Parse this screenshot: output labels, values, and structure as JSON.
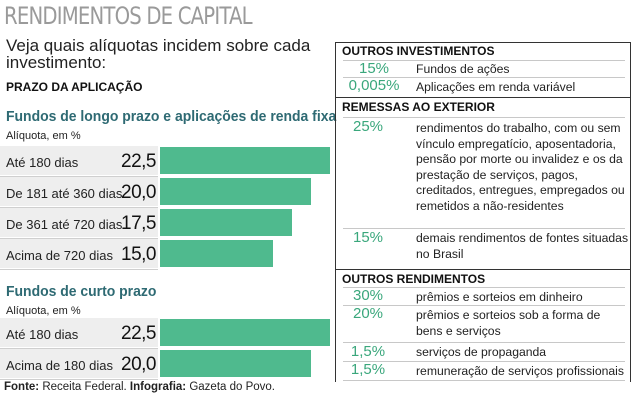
{
  "title": "RENDIMENTOS DE CAPITAL",
  "subtitle": "Veja quais alíquotas incidem sobre cada investimento:",
  "section_label": "PRAZO DA APLICAÇÃO",
  "colors": {
    "bar": "#4fba8e",
    "heading": "#2e6a73",
    "percent": "#3aa77c",
    "title": "#9a9a9a"
  },
  "chart_data": [
    {
      "type": "bar",
      "title": "Fundos de longo prazo e aplicações de renda fixa",
      "ylabel": "Alíquota, em %",
      "categories": [
        "Até 180 dias",
        "De 181 até 360 dias",
        "De 361 até 720 dias",
        "Acima de 720 dias"
      ],
      "values": [
        22.5,
        20.0,
        17.5,
        15.0
      ],
      "value_labels": [
        "22,5",
        "20,0",
        "17,5",
        "15,0"
      ],
      "xlim": [
        0,
        22.5
      ]
    },
    {
      "type": "bar",
      "title": "Fundos de curto prazo",
      "ylabel": "Alíquota, em %",
      "categories": [
        "Até 180 dias",
        "Acima de 180 dias"
      ],
      "values": [
        22.5,
        20.0
      ],
      "value_labels": [
        "22,5",
        "20,0"
      ],
      "xlim": [
        0,
        22.5
      ]
    }
  ],
  "right_table": {
    "sections": [
      {
        "heading": "OUTROS INVESTIMENTOS",
        "rows": [
          {
            "pct": "15%",
            "text": "Fundos de ações"
          },
          {
            "pct": "0,005%",
            "text": "Aplicações em renda variável"
          }
        ]
      },
      {
        "heading": "REMESSAS AO EXTERIOR",
        "rows": [
          {
            "pct": "25%",
            "text": "rendimentos do trabalho, com ou sem vínculo empregatício, aposentadoria, pensão por morte ou invalidez e os da prestação de serviços, pagos, creditados, entregues, empregados ou remetidos a não-residentes"
          },
          {
            "pct": "15%",
            "text": "demais rendimentos de fontes situadas no Brasil"
          }
        ]
      },
      {
        "heading": "OUTROS RENDIMENTOS",
        "rows": [
          {
            "pct": "30%",
            "text": "prêmios e sorteios em dinheiro"
          },
          {
            "pct": "20%",
            "text": "prêmios e sorteios sob a forma de bens e serviços"
          },
          {
            "pct": "1,5%",
            "text": "serviços de propaganda"
          },
          {
            "pct": "1,5%",
            "text": "remuneração de serviços profissionais"
          }
        ]
      }
    ]
  },
  "source": {
    "label1": "Fonte:",
    "text1": " Receita Federal. ",
    "label2": "Infografia:",
    "text2": " Gazeta do Povo."
  }
}
